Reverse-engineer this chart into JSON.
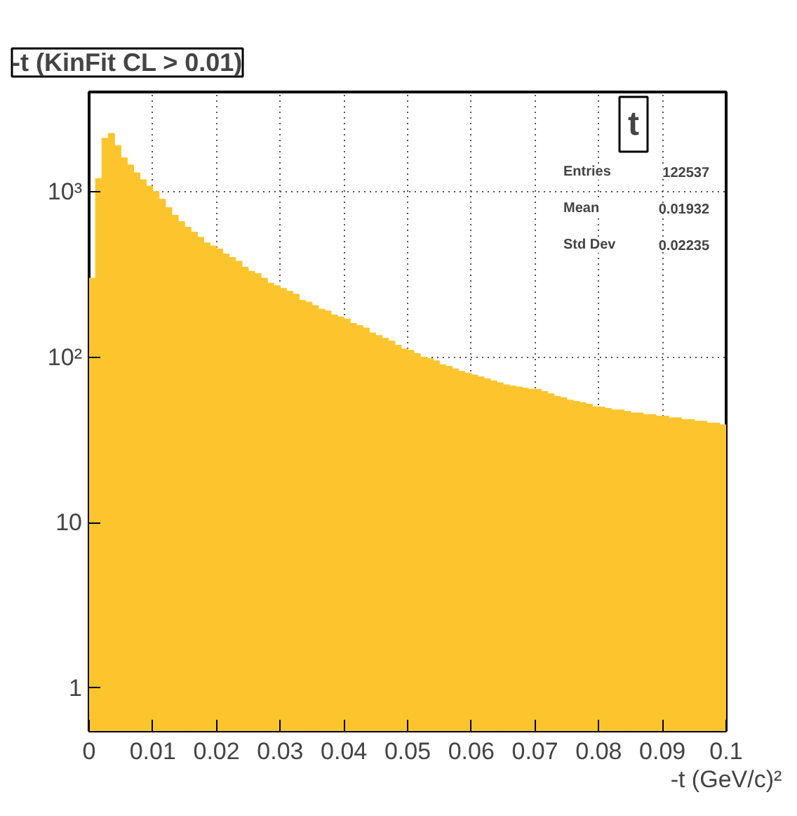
{
  "chart_data": {
    "type": "histogram",
    "title": "-t (KinFit CL > 0.01)",
    "xlabel": "-t (GeV/c)²",
    "bins": [
      0,
      0.001,
      0.002,
      0.003,
      0.004,
      0.005,
      0.006,
      0.007,
      0.008,
      0.009,
      0.01,
      0.011,
      0.012,
      0.013,
      0.014,
      0.015,
      0.016,
      0.017,
      0.018,
      0.019,
      0.02,
      0.021,
      0.022,
      0.023,
      0.024,
      0.025,
      0.026,
      0.027,
      0.028,
      0.029,
      0.03,
      0.031,
      0.032,
      0.033,
      0.034,
      0.035,
      0.036,
      0.037,
      0.038,
      0.039,
      0.04,
      0.041,
      0.042,
      0.043,
      0.044,
      0.045,
      0.046,
      0.047,
      0.048,
      0.049,
      0.05,
      0.051,
      0.052,
      0.053,
      0.054,
      0.055,
      0.056,
      0.057,
      0.058,
      0.059,
      0.06,
      0.061,
      0.062,
      0.063,
      0.064,
      0.065,
      0.066,
      0.067,
      0.068,
      0.069,
      0.07,
      0.071,
      0.072,
      0.073,
      0.074,
      0.075,
      0.076,
      0.077,
      0.078,
      0.079,
      0.08,
      0.081,
      0.082,
      0.083,
      0.084,
      0.085,
      0.086,
      0.087,
      0.088,
      0.089,
      0.09,
      0.091,
      0.092,
      0.093,
      0.094,
      0.095,
      0.096,
      0.097,
      0.098,
      0.099,
      0.1
    ],
    "values": [
      300,
      1200,
      2100,
      2250,
      1900,
      1600,
      1450,
      1300,
      1180,
      1080,
      1000,
      900,
      800,
      720,
      660,
      610,
      570,
      530,
      490,
      470,
      450,
      420,
      400,
      380,
      350,
      330,
      320,
      300,
      280,
      270,
      260,
      250,
      240,
      220,
      215,
      205,
      195,
      190,
      180,
      175,
      170,
      160,
      155,
      150,
      140,
      135,
      130,
      125,
      118,
      112,
      110,
      105,
      100,
      98,
      95,
      90,
      88,
      85,
      82,
      80,
      78,
      76,
      74,
      72,
      70,
      68,
      67,
      66,
      65,
      64,
      64,
      62,
      60,
      58,
      57,
      55,
      54,
      53,
      52,
      50,
      50,
      49,
      48,
      48,
      47,
      46,
      46,
      45,
      45,
      44,
      44,
      43,
      43,
      42,
      42,
      41,
      41,
      40,
      40,
      39
    ],
    "color": "#fcc52e",
    "log": "y",
    "xlim": [
      0,
      0.1
    ],
    "ylim": [
      0.55,
      4000
    ],
    "xticks": [
      {
        "value": 0,
        "label": "0"
      },
      {
        "value": 0.01,
        "label": "0.01"
      },
      {
        "value": 0.02,
        "label": "0.02"
      },
      {
        "value": 0.03,
        "label": "0.03"
      },
      {
        "value": 0.04,
        "label": "0.04"
      },
      {
        "value": 0.05,
        "label": "0.05"
      },
      {
        "value": 0.06,
        "label": "0.06"
      },
      {
        "value": 0.07,
        "label": "0.07"
      },
      {
        "value": 0.08,
        "label": "0.08"
      },
      {
        "value": 0.09,
        "label": "0.09"
      },
      {
        "value": 0.1,
        "label": "0.1"
      }
    ],
    "yticks": [
      1,
      10,
      {
        "value": 100,
        "label": "10²"
      },
      {
        "value": 1000,
        "label": "10³"
      }
    ],
    "grid": true,
    "annotations": [
      "t",
      "Entries",
      "122537",
      "Mean",
      "0.01932",
      "Std Dev",
      "0.02235"
    ]
  }
}
